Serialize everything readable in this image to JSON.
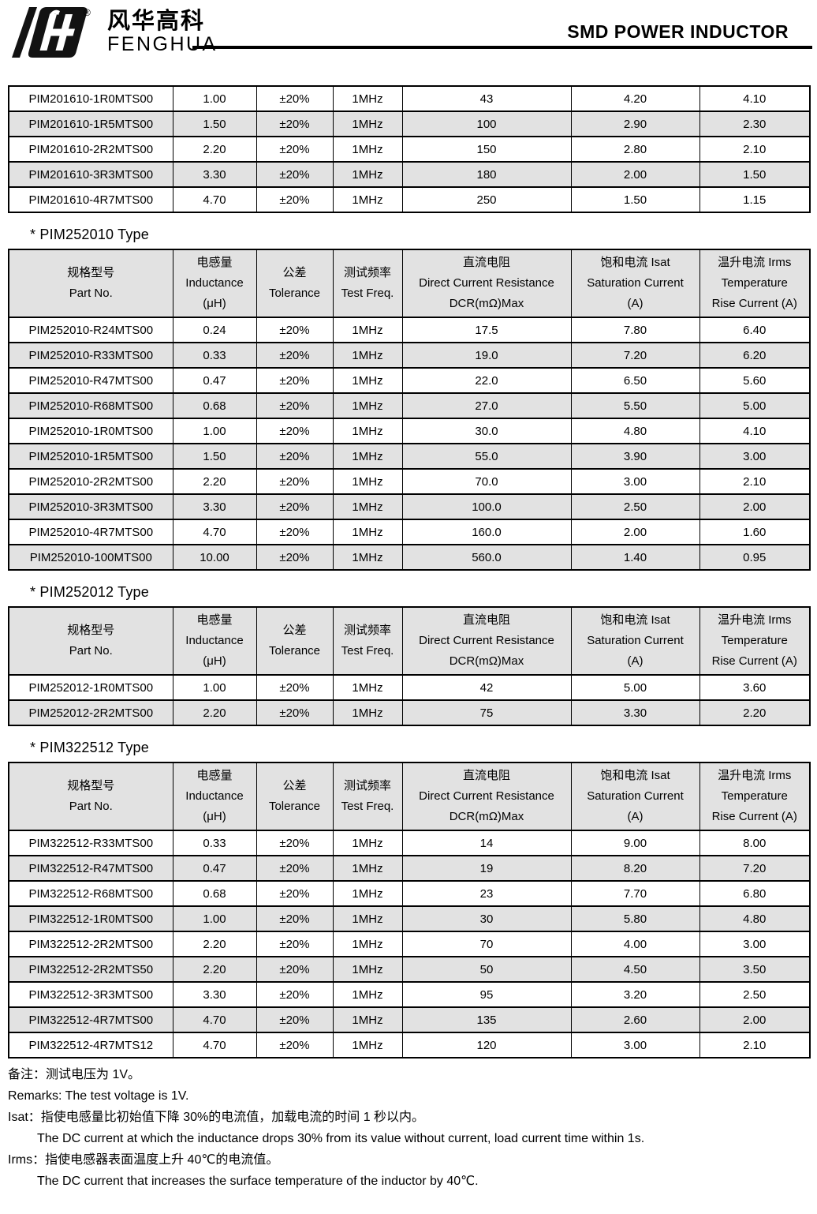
{
  "header": {
    "brand_cn": "风华高科",
    "brand_en": "FENGHUA",
    "registered": "®",
    "title": "SMD POWER INDUCTOR"
  },
  "colors": {
    "row_alt": "#e2e2e2",
    "header_bg": "#e2e2e2",
    "border": "#000000",
    "text": "#000000"
  },
  "table_header": {
    "columns": [
      {
        "lines": [
          "规格型号",
          "Part No."
        ]
      },
      {
        "lines": [
          "电感量",
          "Inductance",
          "(μH)"
        ]
      },
      {
        "lines": [
          "公差",
          "Tolerance"
        ]
      },
      {
        "lines": [
          "测试频率",
          "Test Freq."
        ]
      },
      {
        "lines": [
          "直流电阻",
          "Direct Current Resistance",
          "DCR(mΩ)Max"
        ]
      },
      {
        "lines": [
          "饱和电流  Isat",
          "Saturation Current",
          "(A)"
        ]
      },
      {
        "lines": [
          "温升电流  Irms",
          "Temperature",
          "Rise Current (A)"
        ]
      }
    ]
  },
  "tables": [
    {
      "name": "PIM201610 (continued)",
      "section_title": "",
      "show_header": false,
      "rows": [
        [
          "PIM201610-1R0MTS00",
          "1.00",
          "±20%",
          "1MHz",
          "43",
          "4.20",
          "4.10"
        ],
        [
          "PIM201610-1R5MTS00",
          "1.50",
          "±20%",
          "1MHz",
          "100",
          "2.90",
          "2.30"
        ],
        [
          "PIM201610-2R2MTS00",
          "2.20",
          "±20%",
          "1MHz",
          "150",
          "2.80",
          "2.10"
        ],
        [
          "PIM201610-3R3MTS00",
          "3.30",
          "±20%",
          "1MHz",
          "180",
          "2.00",
          "1.50"
        ],
        [
          "PIM201610-4R7MTS00",
          "4.70",
          "±20%",
          "1MHz",
          "250",
          "1.50",
          "1.15"
        ]
      ]
    },
    {
      "name": "PIM252010",
      "section_title": "* PIM252010 Type",
      "show_header": true,
      "rows": [
        [
          "PIM252010-R24MTS00",
          "0.24",
          "±20%",
          "1MHz",
          "17.5",
          "7.80",
          "6.40"
        ],
        [
          "PIM252010-R33MTS00",
          "0.33",
          "±20%",
          "1MHz",
          "19.0",
          "7.20",
          "6.20"
        ],
        [
          "PIM252010-R47MTS00",
          "0.47",
          "±20%",
          "1MHz",
          "22.0",
          "6.50",
          "5.60"
        ],
        [
          "PIM252010-R68MTS00",
          "0.68",
          "±20%",
          "1MHz",
          "27.0",
          "5.50",
          "5.00"
        ],
        [
          "PIM252010-1R0MTS00",
          "1.00",
          "±20%",
          "1MHz",
          "30.0",
          "4.80",
          "4.10"
        ],
        [
          "PIM252010-1R5MTS00",
          "1.50",
          "±20%",
          "1MHz",
          "55.0",
          "3.90",
          "3.00"
        ],
        [
          "PIM252010-2R2MTS00",
          "2.20",
          "±20%",
          "1MHz",
          "70.0",
          "3.00",
          "2.10"
        ],
        [
          "PIM252010-3R3MTS00",
          "3.30",
          "±20%",
          "1MHz",
          "100.0",
          "2.50",
          "2.00"
        ],
        [
          "PIM252010-4R7MTS00",
          "4.70",
          "±20%",
          "1MHz",
          "160.0",
          "2.00",
          "1.60"
        ],
        [
          "PIM252010-100MTS00",
          "10.00",
          "±20%",
          "1MHz",
          "560.0",
          "1.40",
          "0.95"
        ]
      ]
    },
    {
      "name": "PIM252012",
      "section_title": "* PIM252012 Type",
      "show_header": true,
      "rows": [
        [
          "PIM252012-1R0MTS00",
          "1.00",
          "±20%",
          "1MHz",
          "42",
          "5.00",
          "3.60"
        ],
        [
          "PIM252012-2R2MTS00",
          "2.20",
          "±20%",
          "1MHz",
          "75",
          "3.30",
          "2.20"
        ]
      ]
    },
    {
      "name": "PIM322512",
      "section_title": "* PIM322512 Type",
      "show_header": true,
      "rows": [
        [
          "PIM322512-R33MTS00",
          "0.33",
          "±20%",
          "1MHz",
          "14",
          "9.00",
          "8.00"
        ],
        [
          "PIM322512-R47MTS00",
          "0.47",
          "±20%",
          "1MHz",
          "19",
          "8.20",
          "7.20"
        ],
        [
          "PIM322512-R68MTS00",
          "0.68",
          "±20%",
          "1MHz",
          "23",
          "7.70",
          "6.80"
        ],
        [
          "PIM322512-1R0MTS00",
          "1.00",
          "±20%",
          "1MHz",
          "30",
          "5.80",
          "4.80"
        ],
        [
          "PIM322512-2R2MTS00",
          "2.20",
          "±20%",
          "1MHz",
          "70",
          "4.00",
          "3.00"
        ],
        [
          "PIM322512-2R2MTS50",
          "2.20",
          "±20%",
          "1MHz",
          "50",
          "4.50",
          "3.50"
        ],
        [
          "PIM322512-3R3MTS00",
          "3.30",
          "±20%",
          "1MHz",
          "95",
          "3.20",
          "2.50"
        ],
        [
          "PIM322512-4R7MTS00",
          "4.70",
          "±20%",
          "1MHz",
          "135",
          "2.60",
          "2.00"
        ],
        [
          "PIM322512-4R7MTS12",
          "4.70",
          "±20%",
          "1MHz",
          "120",
          "3.00",
          "2.10"
        ]
      ]
    }
  ],
  "notes": [
    {
      "text": "备注：测试电压为 1V。",
      "indent": false
    },
    {
      "text": "Remarks: The test voltage is 1V.",
      "indent": false
    },
    {
      "text": "Isat：指使电感量比初始值下降 30%的电流值，加载电流的时间 1 秒以内。",
      "indent": false
    },
    {
      "text": "The DC current at which the inductance drops 30% from its value without current, load current time within 1s.",
      "indent": true
    },
    {
      "text": "Irms：指使电感器表面温度上升 40℃的电流值。",
      "indent": false
    },
    {
      "text": "The DC current that increases the surface temperature of the inductor by 40℃.",
      "indent": true
    }
  ]
}
